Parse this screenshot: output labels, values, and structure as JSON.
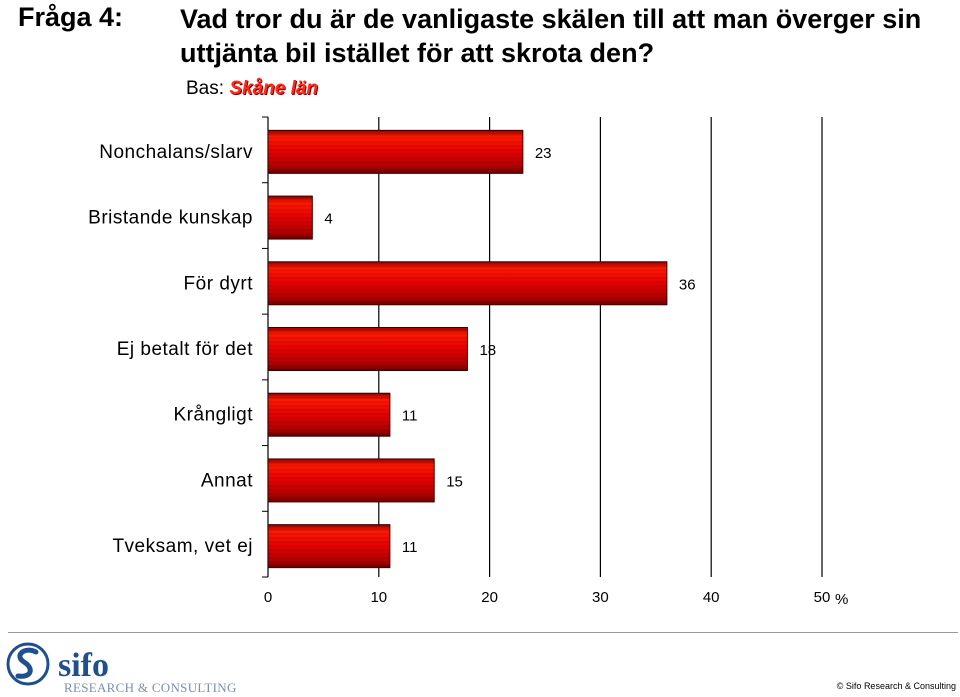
{
  "header": {
    "question_label": "Fråga 4:",
    "question_text": "Vad tror du är de vanligaste skälen till att man överger sin uttjänta bil istället för att skrota den?",
    "base_label": "Bas:",
    "base_value": "Skåne län"
  },
  "chart_data": {
    "type": "bar",
    "orientation": "horizontal",
    "categories": [
      "Nonchalans/slarv",
      "Bristande kunskap",
      "För dyrt",
      "Ej betalt för det",
      "Krångligt",
      "Annat",
      "Tveksam, vet ej"
    ],
    "values": [
      23,
      4,
      36,
      18,
      11,
      15,
      11
    ],
    "xlim": [
      0,
      50
    ],
    "xticks": [
      0,
      10,
      20,
      30,
      40,
      50
    ],
    "unit": "%",
    "grid": true,
    "colors": {
      "bar": "#ee0000",
      "bar_dark": "#8a0000"
    }
  },
  "footer": {
    "logo_name": "sifo",
    "logo_sub": "RESEARCH & CONSULTING",
    "copyright": "© Sifo Research & Consulting"
  }
}
